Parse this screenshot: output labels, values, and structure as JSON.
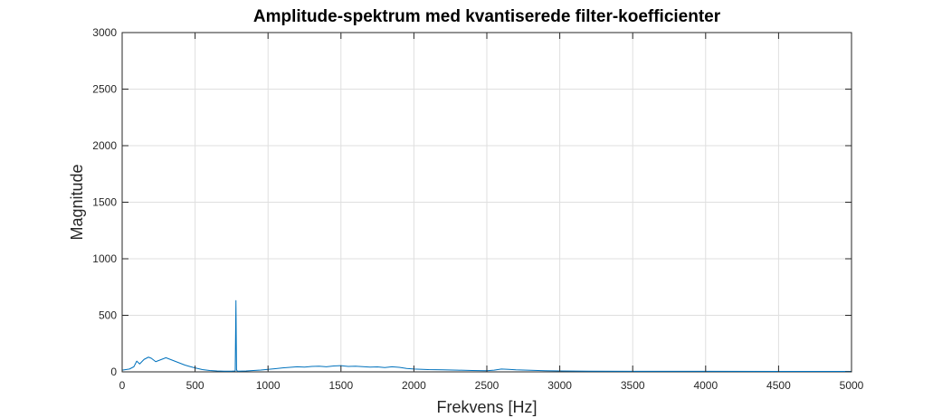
{
  "chart_data": {
    "type": "line",
    "title": "Amplitude-spektrum med kvantiserede filter-koefficienter",
    "xlabel": "Frekvens [Hz]",
    "ylabel": "Magnitude",
    "xlim": [
      0,
      5000
    ],
    "ylim": [
      0,
      3000
    ],
    "xticks": [
      0,
      500,
      1000,
      1500,
      2000,
      2500,
      3000,
      3500,
      4000,
      4500,
      5000
    ],
    "yticks": [
      0,
      500,
      1000,
      1500,
      2000,
      2500,
      3000
    ],
    "xtick_labels": [
      "0",
      "500",
      "1000",
      "1500",
      "2000",
      "2500",
      "3000",
      "3500",
      "4000",
      "4500",
      "5000"
    ],
    "ytick_labels": [
      "0",
      "500",
      "1000",
      "1500",
      "2000",
      "2500",
      "3000"
    ],
    "grid": true,
    "color": "#0072BD",
    "series": [
      {
        "x": [
          0,
          50,
          80,
          100,
          120,
          150,
          180,
          200,
          230,
          260,
          300,
          330,
          360,
          400,
          430,
          470,
          500,
          550,
          600,
          650,
          700,
          750,
          775,
          780,
          784,
          788,
          795,
          850,
          900,
          950,
          1000,
          1050,
          1100,
          1150,
          1200,
          1250,
          1300,
          1350,
          1400,
          1450,
          1500,
          1550,
          1600,
          1650,
          1700,
          1750,
          1800,
          1850,
          1900,
          1950,
          2000,
          2100,
          2200,
          2300,
          2400,
          2500,
          2550,
          2600,
          2650,
          2700,
          2800,
          2900,
          3000,
          3200,
          3500,
          4000,
          4500,
          5000
        ],
        "y": [
          15,
          25,
          45,
          95,
          70,
          110,
          130,
          120,
          90,
          105,
          125,
          110,
          95,
          75,
          60,
          45,
          35,
          20,
          12,
          8,
          6,
          6,
          8,
          630,
          20,
          8,
          6,
          8,
          12,
          16,
          22,
          28,
          35,
          40,
          45,
          42,
          48,
          50,
          45,
          52,
          55,
          48,
          50,
          46,
          42,
          44,
          38,
          45,
          40,
          30,
          25,
          20,
          18,
          15,
          12,
          10,
          15,
          25,
          22,
          18,
          14,
          10,
          8,
          6,
          5,
          5,
          4,
          4
        ]
      }
    ]
  }
}
